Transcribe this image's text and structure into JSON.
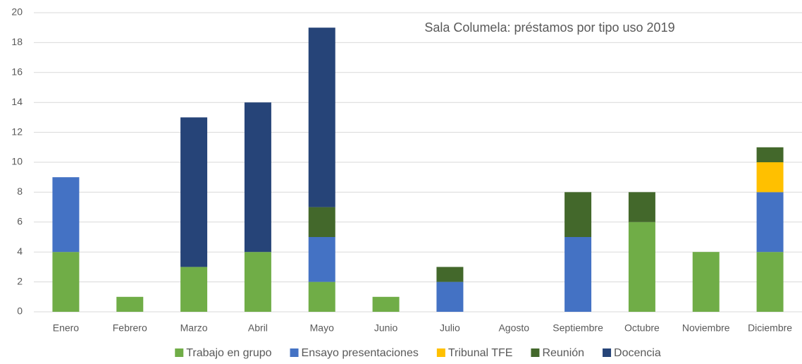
{
  "chart_data": {
    "type": "bar",
    "stacked": true,
    "title": "Sala Columela: préstamos por tipo uso 2019",
    "categories": [
      "Enero",
      "Febrero",
      "Marzo",
      "Abril",
      "Mayo",
      "Junio",
      "Julio",
      "Agosto",
      "Septiembre",
      "Octubre",
      "Noviembre",
      "Diciembre"
    ],
    "series": [
      {
        "name": "Trabajo en grupo",
        "color": "#70ad47",
        "values": [
          4,
          1,
          3,
          4,
          2,
          1,
          0,
          0,
          0,
          6,
          4,
          4
        ]
      },
      {
        "name": "Ensayo presentaciones",
        "color": "#4472c4",
        "values": [
          5,
          0,
          0,
          0,
          3,
          0,
          2,
          0,
          5,
          0,
          0,
          4
        ]
      },
      {
        "name": "Tribunal TFE",
        "color": "#ffc000",
        "values": [
          0,
          0,
          0,
          0,
          0,
          0,
          0,
          0,
          0,
          0,
          0,
          2
        ]
      },
      {
        "name": "Reunión",
        "color": "#43682b",
        "values": [
          0,
          0,
          0,
          0,
          2,
          0,
          1,
          0,
          3,
          2,
          0,
          1
        ]
      },
      {
        "name": "Docencia",
        "color": "#264478",
        "values": [
          0,
          0,
          10,
          10,
          12,
          0,
          0,
          0,
          0,
          0,
          0,
          0
        ]
      }
    ],
    "ylim": [
      0,
      20
    ],
    "yticks": [
      0,
      2,
      4,
      6,
      8,
      10,
      12,
      14,
      16,
      18,
      20
    ],
    "grid": true,
    "legend": "bottom"
  }
}
